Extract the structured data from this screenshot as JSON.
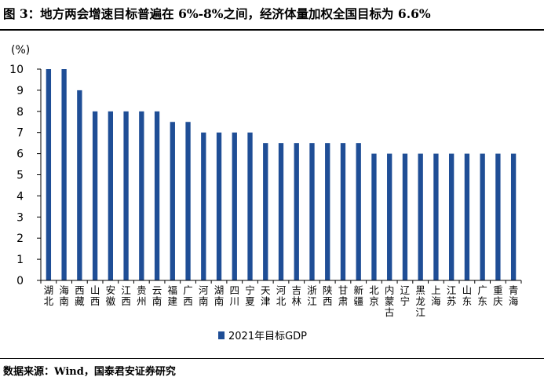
{
  "title": "图 3：地方两会增速目标普遍在 6%-8%之间，经济体量加权全国目标为 6.6%",
  "source": "数据来源：Wind，国泰君安证券研究",
  "colors": {
    "bar": "#1f4e96",
    "axis": "#000000"
  },
  "chart_data": {
    "type": "bar",
    "ylabel": "(%)",
    "ylim": [
      0,
      10
    ],
    "yticks": [
      0,
      1,
      2,
      3,
      4,
      5,
      6,
      7,
      8,
      9,
      10
    ],
    "categories": [
      "湖北",
      "海南",
      "西藏",
      "山西",
      "安徽",
      "江西",
      "贵州",
      "云南",
      "福建",
      "广西",
      "河南",
      "湖南",
      "四川",
      "宁夏",
      "天津",
      "河北",
      "吉林",
      "浙江",
      "陕西",
      "甘肃",
      "新疆",
      "北京",
      "内蒙古",
      "辽宁",
      "黑龙江",
      "上海",
      "江苏",
      "山东",
      "广东",
      "重庆",
      "青海"
    ],
    "series": [
      {
        "name": "2021年目标GDP",
        "values": [
          10,
          10,
          9,
          8,
          8,
          8,
          8,
          8,
          7.5,
          7.5,
          7,
          7,
          7,
          7,
          6.5,
          6.5,
          6.5,
          6.5,
          6.5,
          6.5,
          6.5,
          6,
          6,
          6,
          6,
          6,
          6,
          6,
          6,
          6,
          6
        ]
      }
    ],
    "legend_position": "bottom",
    "grid": false
  }
}
